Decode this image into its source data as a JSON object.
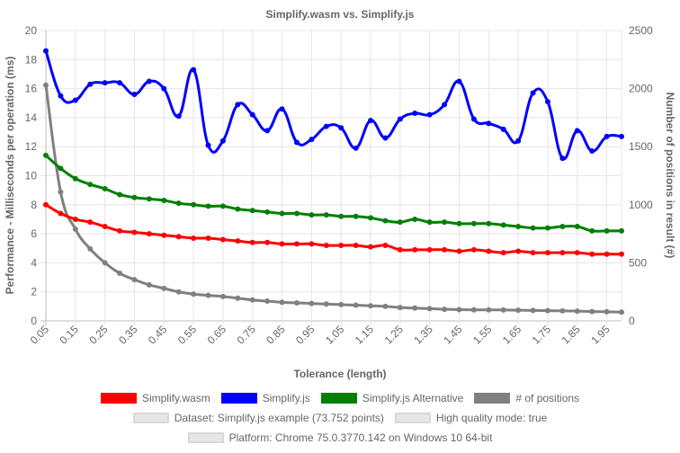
{
  "chart_data": {
    "type": "line",
    "title": "Simplify.wasm vs. Simplify.js",
    "xlabel": "Tolerance (length)",
    "ylabel": "Performance - Milliseconds per operation (ms)",
    "y2label": "Number of positions in result (#)",
    "ylim": [
      0,
      20
    ],
    "y2lim": [
      0,
      2500
    ],
    "yticks": [
      "0",
      "2",
      "4",
      "6",
      "8",
      "10",
      "12",
      "14",
      "16",
      "18",
      "20"
    ],
    "y2ticks": [
      "0",
      "500",
      "1000",
      "1500",
      "2000",
      "2500"
    ],
    "xtick_labels": [
      "0.05",
      "0.15",
      "0.25",
      "0.35",
      "0.45",
      "0.55",
      "0.65",
      "0.75",
      "0.85",
      "0.95",
      "1.05",
      "1.15",
      "1.25",
      "1.35",
      "1.45",
      "1.55",
      "1.65",
      "1.75",
      "1.85",
      "1.95"
    ],
    "x": [
      0.05,
      0.1,
      0.15,
      0.2,
      0.25,
      0.3,
      0.35,
      0.4,
      0.45,
      0.5,
      0.55,
      0.6,
      0.65,
      0.7,
      0.75,
      0.8,
      0.85,
      0.9,
      0.95,
      1.0,
      1.05,
      1.1,
      1.15,
      1.2,
      1.25,
      1.3,
      1.35,
      1.4,
      1.45,
      1.5,
      1.55,
      1.6,
      1.65,
      1.7,
      1.75,
      1.8,
      1.85,
      1.9,
      1.95,
      2.0
    ],
    "legend_position": "bottom",
    "grid": true,
    "series": [
      {
        "name": "Simplify.wasm",
        "axis": "left",
        "color": "#ff0000",
        "values": [
          8.0,
          7.4,
          7.0,
          6.8,
          6.5,
          6.2,
          6.1,
          6.0,
          5.9,
          5.8,
          5.7,
          5.7,
          5.6,
          5.5,
          5.4,
          5.4,
          5.3,
          5.3,
          5.3,
          5.2,
          5.2,
          5.2,
          5.1,
          5.2,
          4.9,
          4.9,
          4.9,
          4.9,
          4.8,
          4.9,
          4.8,
          4.7,
          4.8,
          4.7,
          4.7,
          4.7,
          4.7,
          4.6,
          4.6,
          4.6
        ]
      },
      {
        "name": "Simplify.js",
        "axis": "left",
        "color": "#0000ff",
        "values": [
          18.6,
          15.5,
          15.2,
          16.3,
          16.4,
          16.4,
          15.6,
          16.5,
          16.0,
          14.1,
          17.3,
          12.1,
          12.4,
          14.9,
          14.2,
          13.1,
          14.6,
          12.3,
          12.5,
          13.4,
          13.3,
          11.9,
          13.8,
          12.6,
          13.9,
          14.3,
          14.2,
          14.9,
          16.5,
          13.9,
          13.6,
          13.2,
          12.4,
          15.7,
          15.1,
          11.2,
          13.1,
          11.7,
          12.7,
          12.7
        ]
      },
      {
        "name": "Simplify.js Alternative",
        "axis": "left",
        "color": "#008000",
        "values": [
          11.4,
          10.5,
          9.8,
          9.4,
          9.1,
          8.7,
          8.5,
          8.4,
          8.3,
          8.1,
          8.0,
          7.9,
          7.9,
          7.7,
          7.6,
          7.5,
          7.4,
          7.4,
          7.3,
          7.3,
          7.2,
          7.2,
          7.1,
          6.9,
          6.8,
          7.0,
          6.8,
          6.8,
          6.7,
          6.7,
          6.7,
          6.6,
          6.5,
          6.4,
          6.4,
          6.5,
          6.5,
          6.2,
          6.2,
          6.2
        ]
      },
      {
        "name": "# of positions",
        "axis": "right",
        "color": "#808080",
        "values": [
          2030,
          1110,
          790,
          620,
          500,
          410,
          355,
          310,
          280,
          250,
          230,
          220,
          210,
          195,
          180,
          170,
          160,
          155,
          150,
          145,
          140,
          135,
          130,
          125,
          115,
          110,
          105,
          100,
          97,
          95,
          95,
          94,
          92,
          90,
          88,
          86,
          84,
          80,
          78,
          75
        ]
      }
    ],
    "options": [
      {
        "label": "Dataset: Simplify.js example (73.752 points)"
      },
      {
        "label": "High quality mode: true"
      },
      {
        "label": "Platform: Chrome 75.0.3770.142 on Windows 10 64-bit"
      }
    ]
  }
}
